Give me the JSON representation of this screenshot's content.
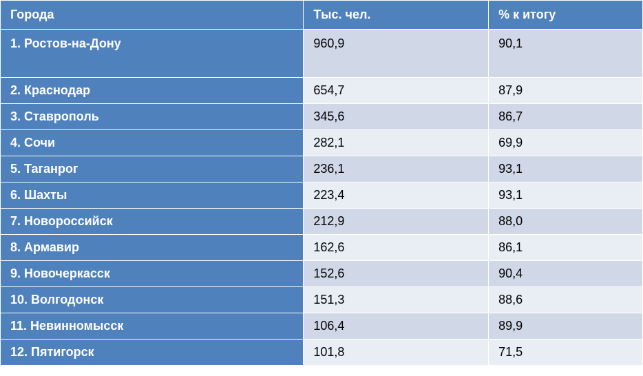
{
  "table": {
    "columns": [
      "Города",
      "Тыс. чел.",
      "% к итогу"
    ],
    "rows": [
      {
        "label": "1. Ростов-на-Дону",
        "population": "960,9",
        "percent": "90,1",
        "tall": true
      },
      {
        "label": "2. Краснодар",
        "population": "654,7",
        "percent": "87,9"
      },
      {
        "label": "3. Ставрополь",
        "population": "345,6",
        "percent": "86,7"
      },
      {
        "label": "4. Сочи",
        "population": "282,1",
        "percent": "69,9"
      },
      {
        "label": "5. Таганрог",
        "population": "236,1",
        "percent": "93,1"
      },
      {
        "label": "6. Шахты",
        "population": "223,4",
        "percent": "93,1"
      },
      {
        "label": "7. Новороссийск",
        "population": "212,9",
        "percent": "88,0"
      },
      {
        "label": "8. Армавир",
        "population": "162,6",
        "percent": "86,1"
      },
      {
        "label": "9. Новочеркасск",
        "population": "152,6",
        "percent": "90,4"
      },
      {
        "label": "10. Волгодонск",
        "population": "151,3",
        "percent": "88,6"
      },
      {
        "label": "11. Невинномысск",
        "population": "106,4",
        "percent": "89,9"
      },
      {
        "label": "12. Пятигорск",
        "population": "101,8",
        "percent": "71,5"
      }
    ],
    "style": {
      "header_bg": "#4f81bd",
      "header_text": "#ffffff",
      "label_bg": "#4f81bd",
      "label_text": "#ffffff",
      "row_odd_bg": "#d0d8e8",
      "row_even_bg": "#e9edf4",
      "cell_text": "#000000",
      "header_fontsize": 18,
      "cell_fontsize": 18,
      "border_color": "#ffffff"
    }
  }
}
